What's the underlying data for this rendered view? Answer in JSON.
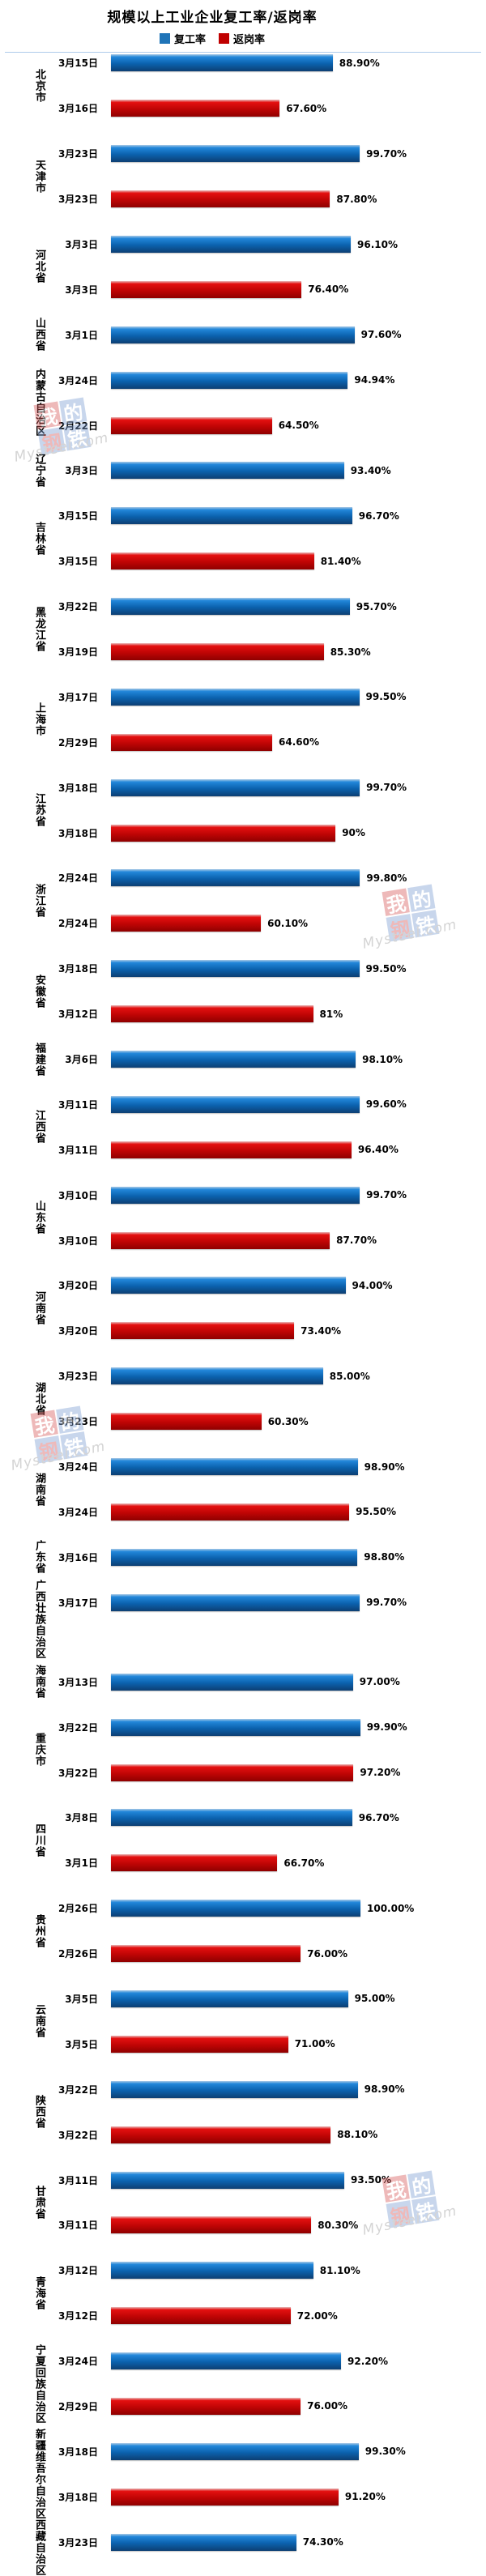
{
  "title": "规模以上工业企业复工率/返岗率",
  "legend": [
    {
      "name": "复工率",
      "color": "#1f74b8"
    },
    {
      "name": "返岗率",
      "color": "#c00000"
    }
  ],
  "watermark": {
    "logo_chars": [
      "我",
      "的",
      "钢",
      "铁"
    ],
    "script": "Mysteel.com"
  },
  "chart_data": {
    "type": "bar",
    "orientation": "horizontal",
    "unit": "%",
    "xlim": [
      0,
      100
    ],
    "grid": false,
    "x_axis_visible": false,
    "legend_position": "top",
    "series_names": [
      "复工率",
      "返岗率"
    ],
    "colors": {
      "复工率": "#1f74b8",
      "返岗率": "#c00000"
    },
    "provinces": [
      {
        "name": "北京市",
        "bars": [
          {
            "series": "复工率",
            "date": "3月15日",
            "value": 88.9,
            "label": "88.90%"
          },
          {
            "series": "返岗率",
            "date": "3月16日",
            "value": 67.6,
            "label": "67.60%"
          }
        ]
      },
      {
        "name": "天津市",
        "bars": [
          {
            "series": "复工率",
            "date": "3月23日",
            "value": 99.7,
            "label": "99.70%"
          },
          {
            "series": "返岗率",
            "date": "3月23日",
            "value": 87.8,
            "label": "87.80%"
          }
        ]
      },
      {
        "name": "河北省",
        "bars": [
          {
            "series": "复工率",
            "date": "3月3日",
            "value": 96.1,
            "label": "96.10%"
          },
          {
            "series": "返岗率",
            "date": "3月3日",
            "value": 76.4,
            "label": "76.40%"
          }
        ]
      },
      {
        "name": "山西省",
        "bars": [
          {
            "series": "复工率",
            "date": "3月1日",
            "value": 97.6,
            "label": "97.60%"
          }
        ]
      },
      {
        "name": "内蒙古自治区",
        "bars": [
          {
            "series": "复工率",
            "date": "3月24日",
            "value": 94.94,
            "label": "94.94%"
          },
          {
            "series": "返岗率",
            "date": "2月22日",
            "value": 64.5,
            "label": "64.50%"
          }
        ]
      },
      {
        "name": "辽宁省",
        "bars": [
          {
            "series": "复工率",
            "date": "3月3日",
            "value": 93.4,
            "label": "93.40%"
          }
        ]
      },
      {
        "name": "吉林省",
        "bars": [
          {
            "series": "复工率",
            "date": "3月15日",
            "value": 96.7,
            "label": "96.70%"
          },
          {
            "series": "返岗率",
            "date": "3月15日",
            "value": 81.4,
            "label": "81.40%"
          }
        ]
      },
      {
        "name": "黑龙江省",
        "bars": [
          {
            "series": "复工率",
            "date": "3月22日",
            "value": 95.7,
            "label": "95.70%"
          },
          {
            "series": "返岗率",
            "date": "3月19日",
            "value": 85.3,
            "label": "85.30%"
          }
        ]
      },
      {
        "name": "上海市",
        "bars": [
          {
            "series": "复工率",
            "date": "3月17日",
            "value": 99.5,
            "label": "99.50%"
          },
          {
            "series": "返岗率",
            "date": "2月29日",
            "value": 64.6,
            "label": "64.60%"
          }
        ]
      },
      {
        "name": "江苏省",
        "bars": [
          {
            "series": "复工率",
            "date": "3月18日",
            "value": 99.7,
            "label": "99.70%"
          },
          {
            "series": "返岗率",
            "date": "3月18日",
            "value": 90,
            "label": "90%"
          }
        ]
      },
      {
        "name": "浙江省",
        "bars": [
          {
            "series": "复工率",
            "date": "2月24日",
            "value": 99.8,
            "label": "99.80%"
          },
          {
            "series": "返岗率",
            "date": "2月24日",
            "value": 60.1,
            "label": "60.10%"
          }
        ]
      },
      {
        "name": "安徽省",
        "bars": [
          {
            "series": "复工率",
            "date": "3月18日",
            "value": 99.5,
            "label": "99.50%"
          },
          {
            "series": "返岗率",
            "date": "3月12日",
            "value": 81,
            "label": "81%"
          }
        ]
      },
      {
        "name": "福建省",
        "bars": [
          {
            "series": "复工率",
            "date": "3月6日",
            "value": 98.1,
            "label": "98.10%"
          }
        ]
      },
      {
        "name": "江西省",
        "bars": [
          {
            "series": "复工率",
            "date": "3月11日",
            "value": 99.6,
            "label": "99.60%"
          },
          {
            "series": "返岗率",
            "date": "3月11日",
            "value": 96.4,
            "label": "96.40%"
          }
        ]
      },
      {
        "name": "山东省",
        "bars": [
          {
            "series": "复工率",
            "date": "3月10日",
            "value": 99.7,
            "label": "99.70%"
          },
          {
            "series": "返岗率",
            "date": "3月10日",
            "value": 87.7,
            "label": "87.70%"
          }
        ]
      },
      {
        "name": "河南省",
        "bars": [
          {
            "series": "复工率",
            "date": "3月20日",
            "value": 94,
            "label": "94.00%"
          },
          {
            "series": "返岗率",
            "date": "3月20日",
            "value": 73.4,
            "label": "73.40%"
          }
        ]
      },
      {
        "name": "湖北省",
        "bars": [
          {
            "series": "复工率",
            "date": "3月23日",
            "value": 85,
            "label": "85.00%"
          },
          {
            "series": "返岗率",
            "date": "3月23日",
            "value": 60.3,
            "label": "60.30%"
          }
        ]
      },
      {
        "name": "湖南省",
        "bars": [
          {
            "series": "复工率",
            "date": "3月24日",
            "value": 98.9,
            "label": "98.90%"
          },
          {
            "series": "返岗率",
            "date": "3月24日",
            "value": 95.5,
            "label": "95.50%"
          }
        ]
      },
      {
        "name": "广东省",
        "bars": [
          {
            "series": "复工率",
            "date": "3月16日",
            "value": 98.8,
            "label": "98.80%"
          }
        ]
      },
      {
        "name": "广西壮族自治区",
        "bars": [
          {
            "series": "复工率",
            "date": "3月17日",
            "value": 99.7,
            "label": "99.70%"
          }
        ]
      },
      {
        "name": "海南省",
        "bars": [
          {
            "series": "复工率",
            "date": "3月13日",
            "value": 97,
            "label": "97.00%"
          }
        ]
      },
      {
        "name": "重庆市",
        "bars": [
          {
            "series": "复工率",
            "date": "3月22日",
            "value": 99.9,
            "label": "99.90%"
          },
          {
            "series": "返岗率",
            "date": "3月22日",
            "value": 97.2,
            "label": "97.20%"
          }
        ]
      },
      {
        "name": "四川省",
        "bars": [
          {
            "series": "复工率",
            "date": "3月8日",
            "value": 96.7,
            "label": "96.70%"
          },
          {
            "series": "返岗率",
            "date": "3月1日",
            "value": 66.7,
            "label": "66.70%"
          }
        ]
      },
      {
        "name": "贵州省",
        "bars": [
          {
            "series": "复工率",
            "date": "2月26日",
            "value": 100,
            "label": "100.00%"
          },
          {
            "series": "返岗率",
            "date": "2月26日",
            "value": 76,
            "label": "76.00%"
          }
        ]
      },
      {
        "name": "云南省",
        "bars": [
          {
            "series": "复工率",
            "date": "3月5日",
            "value": 95,
            "label": "95.00%"
          },
          {
            "series": "返岗率",
            "date": "3月5日",
            "value": 71,
            "label": "71.00%"
          }
        ]
      },
      {
        "name": "陕西省",
        "bars": [
          {
            "series": "复工率",
            "date": "3月22日",
            "value": 98.9,
            "label": "98.90%"
          },
          {
            "series": "返岗率",
            "date": "3月22日",
            "value": 88.1,
            "label": "88.10%"
          }
        ]
      },
      {
        "name": "甘肃省",
        "bars": [
          {
            "series": "复工率",
            "date": "3月11日",
            "value": 93.5,
            "label": "93.50%"
          },
          {
            "series": "返岗率",
            "date": "3月11日",
            "value": 80.3,
            "label": "80.30%"
          }
        ]
      },
      {
        "name": "青海省",
        "bars": [
          {
            "series": "复工率",
            "date": "3月12日",
            "value": 81.1,
            "label": "81.10%"
          },
          {
            "series": "返岗率",
            "date": "3月12日",
            "value": 72,
            "label": "72.00%"
          }
        ]
      },
      {
        "name": "宁夏回族自治区",
        "bars": [
          {
            "series": "复工率",
            "date": "3月24日",
            "value": 92.2,
            "label": "92.20%"
          },
          {
            "series": "返岗率",
            "date": "2月29日",
            "value": 76,
            "label": "76.00%"
          }
        ]
      },
      {
        "name": "新疆维吾尔自治区",
        "bars": [
          {
            "series": "复工率",
            "date": "3月18日",
            "value": 99.3,
            "label": "99.30%"
          },
          {
            "series": "返岗率",
            "date": "3月18日",
            "value": 91.2,
            "label": "91.20%"
          }
        ]
      },
      {
        "name": "西藏自治区",
        "bars": [
          {
            "series": "复工率",
            "date": "3月23日",
            "value": 74.3,
            "label": "74.30%"
          }
        ]
      }
    ]
  }
}
